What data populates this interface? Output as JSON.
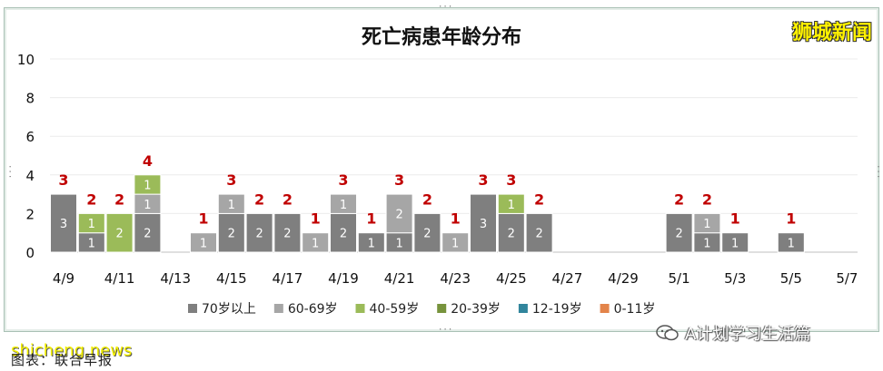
{
  "watermark_top": "狮城新闻",
  "site_watermark": "shicheng.news",
  "caption": "图表：联合早报",
  "account": {
    "name": "A计划学习生活篇",
    "icon": "wechat-icon"
  },
  "chart_data": {
    "type": "bar",
    "stacked": true,
    "title": "死亡病患年龄分布",
    "xlabel": "",
    "ylabel": "",
    "ylim": [
      0,
      10
    ],
    "yticks": [
      0,
      2,
      4,
      6,
      8,
      10
    ],
    "grid": true,
    "legend_position": "bottom",
    "x_tick_labels": [
      "4/9",
      "4/11",
      "4/13",
      "4/15",
      "4/17",
      "4/19",
      "4/21",
      "4/23",
      "4/25",
      "4/27",
      "4/29",
      "5/1",
      "5/3",
      "5/5",
      "5/7"
    ],
    "categories": [
      "4/9",
      "4/10",
      "4/11",
      "4/12",
      "4/13",
      "4/14",
      "4/15",
      "4/16",
      "4/17",
      "4/18",
      "4/19",
      "4/20",
      "4/21",
      "4/22",
      "4/23",
      "4/24",
      "4/25",
      "4/26",
      "4/27",
      "4/28",
      "4/29",
      "4/30",
      "5/1",
      "5/2",
      "5/3",
      "5/4",
      "5/5",
      "5/6",
      "5/7"
    ],
    "totals": [
      3,
      2,
      2,
      4,
      null,
      1,
      3,
      2,
      2,
      1,
      3,
      1,
      3,
      2,
      1,
      3,
      3,
      2,
      null,
      null,
      null,
      null,
      2,
      2,
      1,
      null,
      1,
      null,
      null
    ],
    "series": [
      {
        "name": "70岁以上",
        "color": "#7f7f7f",
        "values": [
          3,
          1,
          0,
          2,
          0,
          0,
          2,
          2,
          2,
          0,
          2,
          1,
          1,
          2,
          0,
          3,
          2,
          2,
          0,
          0,
          0,
          0,
          2,
          1,
          1,
          0,
          1,
          0,
          0
        ]
      },
      {
        "name": "60-69岁",
        "color": "#a6a6a6",
        "values": [
          0,
          0,
          0,
          1,
          0,
          1,
          1,
          0,
          0,
          1,
          1,
          0,
          2,
          0,
          1,
          0,
          0,
          0,
          0,
          0,
          0,
          0,
          0,
          1,
          0,
          0,
          0,
          0,
          0
        ]
      },
      {
        "name": "40-59岁",
        "color": "#9bbb59",
        "values": [
          0,
          1,
          2,
          1,
          0,
          0,
          0,
          0,
          0,
          0,
          0,
          0,
          0,
          0,
          0,
          0,
          1,
          0,
          0,
          0,
          0,
          0,
          0,
          0,
          0,
          0,
          0,
          0,
          0
        ]
      },
      {
        "name": "20-39岁",
        "color": "#77933c",
        "values": [
          0,
          0,
          0,
          0,
          0,
          0,
          0,
          0,
          0,
          0,
          0,
          0,
          0,
          0,
          0,
          0,
          0,
          0,
          0,
          0,
          0,
          0,
          0,
          0,
          0,
          0,
          0,
          0,
          0
        ]
      },
      {
        "name": "12-19岁",
        "color": "#31859c",
        "values": [
          0,
          0,
          0,
          0,
          0,
          0,
          0,
          0,
          0,
          0,
          0,
          0,
          0,
          0,
          0,
          0,
          0,
          0,
          0,
          0,
          0,
          0,
          0,
          0,
          0,
          0,
          0,
          0,
          0
        ]
      },
      {
        "name": "0-11岁",
        "color": "#e3844a",
        "values": [
          0,
          0,
          0,
          0,
          0,
          0,
          0,
          0,
          0,
          0,
          0,
          0,
          0,
          0,
          0,
          0,
          0,
          0,
          0,
          0,
          0,
          0,
          0,
          0,
          0,
          0,
          0,
          0,
          0
        ]
      }
    ],
    "total_label_color": "#c00000",
    "segment_label_color": "#ffffff"
  }
}
